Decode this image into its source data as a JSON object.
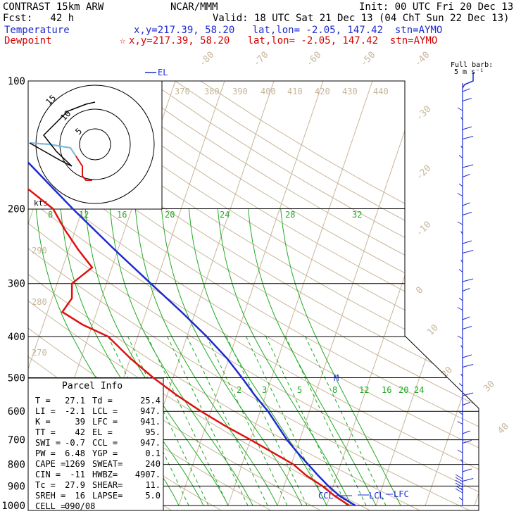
{
  "header": {
    "model": "CONTRAST 15km ARW",
    "fcst": "Fcst:   42 h",
    "center": "NCAR/MMM",
    "init": "Init: 00 UTC Fri 20 Dec 13",
    "valid": "Valid: 18 UTC Sat 21 Dec 13 (04 ChT Sun 22 Dec 13)",
    "temp_label": "Temperature",
    "temp_info": "x,y=217.39, 58.20   lat,lon= -2.05, 147.42  stn=AYMO",
    "dew_label": "Dewpoint",
    "dew_info": "x,y=217.39, 58.20   lat,lon= -2.05, 147.42  stn=AYMO",
    "dew_marker": "☆"
  },
  "colors": {
    "temperature": "#1d2ad1",
    "dewpoint": "#e01010",
    "isobar": "#000000",
    "isotherm": "#c8b59a",
    "dry_adiabat": "#c8b59a",
    "mixing_ratio": "#22aa22",
    "moist_adiabat": "#22aa22",
    "wind": "#1d2ad1"
  },
  "chart_data": {
    "type": "skew-t",
    "pressure_levels": [
      100,
      200,
      300,
      400,
      500,
      600,
      700,
      800,
      900,
      1000
    ],
    "isotherm_labels": [
      "-80",
      "-70",
      "-60",
      "-50",
      "-40",
      "-30",
      "-20",
      "-10",
      "0",
      "10",
      "20",
      "30",
      "40"
    ],
    "dry_adiabat_labels": [
      "370",
      "380",
      "390",
      "400",
      "410",
      "420",
      "430",
      "440",
      "290",
      "280",
      "270"
    ],
    "mixing_ratio_labels_upper": [
      "8",
      "12",
      "16",
      "20",
      "24",
      "28",
      "32"
    ],
    "mixing_ratio_labels_lower": [
      "2",
      "3",
      "5",
      "8",
      "12",
      "16",
      "20",
      "24"
    ],
    "temperature": [
      {
        "p": 1000,
        "t": 25.8
      },
      {
        "p": 950,
        "t": 22.0
      },
      {
        "p": 900,
        "t": 19.0
      },
      {
        "p": 850,
        "t": 16.2
      },
      {
        "p": 800,
        "t": 13.4
      },
      {
        "p": 750,
        "t": 10.4
      },
      {
        "p": 700,
        "t": 7.4
      },
      {
        "p": 650,
        "t": 4.6
      },
      {
        "p": 600,
        "t": 1.6
      },
      {
        "p": 550,
        "t": -2.2
      },
      {
        "p": 500,
        "t": -6.0
      },
      {
        "p": 450,
        "t": -10.4
      },
      {
        "p": 400,
        "t": -16.0
      },
      {
        "p": 350,
        "t": -22.8
      },
      {
        "p": 300,
        "t": -31.0
      },
      {
        "p": 250,
        "t": -40.6
      },
      {
        "p": 200,
        "t": -52.0
      },
      {
        "p": 175,
        "t": -58.5
      },
      {
        "p": 150,
        "t": -66.0
      },
      {
        "p": 125,
        "t": -75.0
      },
      {
        "p": 100,
        "t": -85.0
      }
    ],
    "dewpoint": [
      {
        "p": 1000,
        "t": 24.6
      },
      {
        "p": 950,
        "t": 21.0
      },
      {
        "p": 900,
        "t": 17.8
      },
      {
        "p": 850,
        "t": 13.8
      },
      {
        "p": 800,
        "t": 10.4
      },
      {
        "p": 750,
        "t": 5.4
      },
      {
        "p": 700,
        "t": 0.0
      },
      {
        "p": 650,
        "t": -6.0
      },
      {
        "p": 600,
        "t": -12.0
      },
      {
        "p": 550,
        "t": -18.0
      },
      {
        "p": 500,
        "t": -24.0
      },
      {
        "p": 450,
        "t": -30.0
      },
      {
        "p": 400,
        "t": -36.0
      },
      {
        "p": 375,
        "t": -42.0
      },
      {
        "p": 350,
        "t": -47.0
      },
      {
        "p": 325,
        "t": -46.0
      },
      {
        "p": 300,
        "t": -47.0
      },
      {
        "p": 275,
        "t": -44.0
      },
      {
        "p": 250,
        "t": -48.0
      },
      {
        "p": 225,
        "t": -52.0
      },
      {
        "p": 200,
        "t": -56.0
      },
      {
        "p": 175,
        "t": -64.0
      },
      {
        "p": 150,
        "t": -73.0
      },
      {
        "p": 125,
        "t": -82.0
      },
      {
        "p": 112,
        "t": -83.0
      },
      {
        "p": 100,
        "t": -78.0
      }
    ],
    "level_markers": [
      "EL",
      "M",
      "CCL",
      "LCL",
      "LFC"
    ],
    "hodograph": {
      "ring_labels": [
        "5",
        "10",
        "15"
      ],
      "units_label": "kts"
    },
    "wind_barb_header": "Full barb:",
    "wind_barb_units": "5 m s⁻¹",
    "parcel_info": {
      "title": "Parcel Info",
      "rows": [
        [
          "T  =",
          "27.1",
          "Td =",
          "25.4"
        ],
        [
          "LI =",
          "-2.1",
          "LCL =",
          "947."
        ],
        [
          "K  =",
          "39",
          "LFC =",
          "941."
        ],
        [
          "TT =",
          "42",
          "EL =",
          "95."
        ],
        [
          "SWI =",
          "-0.7",
          "CCL =",
          "947."
        ],
        [
          "PW =",
          "6.48",
          "YGP =",
          "0.1"
        ],
        [
          "CAPE =",
          "1269",
          "SWEAT=",
          "240"
        ],
        [
          "CIN =",
          "-11",
          "HWBZ=",
          "4907."
        ],
        [
          "Tc =",
          "27.9",
          "SHEAR=",
          "11."
        ],
        [
          "SREH =",
          "16",
          "LAPSE=",
          "5.0"
        ],
        [
          "CELL =",
          "090/08",
          "",
          ""
        ]
      ]
    }
  }
}
